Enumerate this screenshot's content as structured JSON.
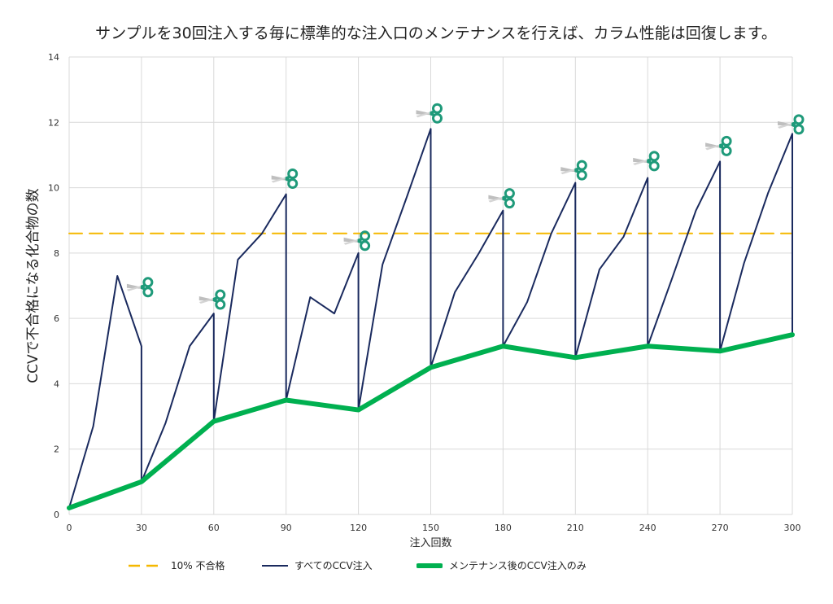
{
  "chart_data": {
    "type": "line",
    "title": "サンプルを30回注入する毎に標準的な注入口のメンテナンスを行えば、カラム性能は回復します。",
    "xlabel": "注入回数",
    "ylabel": "CCVで不合格になる化合物の数",
    "xlim": [
      0,
      300
    ],
    "ylim": [
      0,
      14
    ],
    "xticks": [
      0,
      30,
      60,
      90,
      120,
      150,
      180,
      210,
      240,
      270,
      300
    ],
    "yticks": [
      0,
      2,
      4,
      6,
      8,
      10,
      12,
      14
    ],
    "grid": true,
    "legend_position": "bottom",
    "series": [
      {
        "name": "10% 不合格",
        "color": "#f5b800",
        "style": "dashed",
        "points": [
          [
            0,
            8.6
          ],
          [
            300,
            8.6
          ]
        ]
      },
      {
        "name": "すべてのCCV注入",
        "color": "#1a2a5e",
        "style": "solid",
        "points": [
          [
            0,
            0.2
          ],
          [
            10,
            2.7
          ],
          [
            20,
            7.3
          ],
          [
            30,
            5.15
          ],
          [
            30,
            1.0
          ],
          [
            40,
            2.8
          ],
          [
            50,
            5.15
          ],
          [
            60,
            6.15
          ],
          [
            60,
            2.85
          ],
          [
            70,
            7.8
          ],
          [
            80,
            8.6
          ],
          [
            90,
            9.8
          ],
          [
            90,
            3.5
          ],
          [
            100,
            6.65
          ],
          [
            110,
            6.15
          ],
          [
            120,
            8.0
          ],
          [
            120,
            3.2
          ],
          [
            130,
            7.65
          ],
          [
            140,
            9.7
          ],
          [
            150,
            11.8
          ],
          [
            150,
            4.5
          ],
          [
            160,
            6.8
          ],
          [
            170,
            8.0
          ],
          [
            180,
            9.3
          ],
          [
            180,
            5.15
          ],
          [
            190,
            6.5
          ],
          [
            200,
            8.6
          ],
          [
            210,
            10.15
          ],
          [
            210,
            4.8
          ],
          [
            220,
            7.5
          ],
          [
            230,
            8.5
          ],
          [
            240,
            10.3
          ],
          [
            240,
            5.15
          ],
          [
            250,
            7.2
          ],
          [
            260,
            9.3
          ],
          [
            270,
            10.8
          ],
          [
            270,
            5.0
          ],
          [
            280,
            7.7
          ],
          [
            290,
            9.85
          ],
          [
            300,
            11.65
          ],
          [
            300,
            5.5
          ]
        ]
      },
      {
        "name": "メンテナンス後のCCV注入のみ",
        "color": "#00b050",
        "style": "thick",
        "points": [
          [
            0,
            0.2
          ],
          [
            30,
            1.0
          ],
          [
            60,
            2.85
          ],
          [
            90,
            3.5
          ],
          [
            120,
            3.2
          ],
          [
            150,
            4.5
          ],
          [
            180,
            5.15
          ],
          [
            210,
            4.8
          ],
          [
            240,
            5.15
          ],
          [
            270,
            5.0
          ],
          [
            300,
            5.5
          ]
        ]
      }
    ],
    "annotations": {
      "icon": "scissors-icon",
      "at_x": [
        30,
        60,
        90,
        120,
        150,
        180,
        210,
        240,
        270,
        300
      ]
    }
  }
}
